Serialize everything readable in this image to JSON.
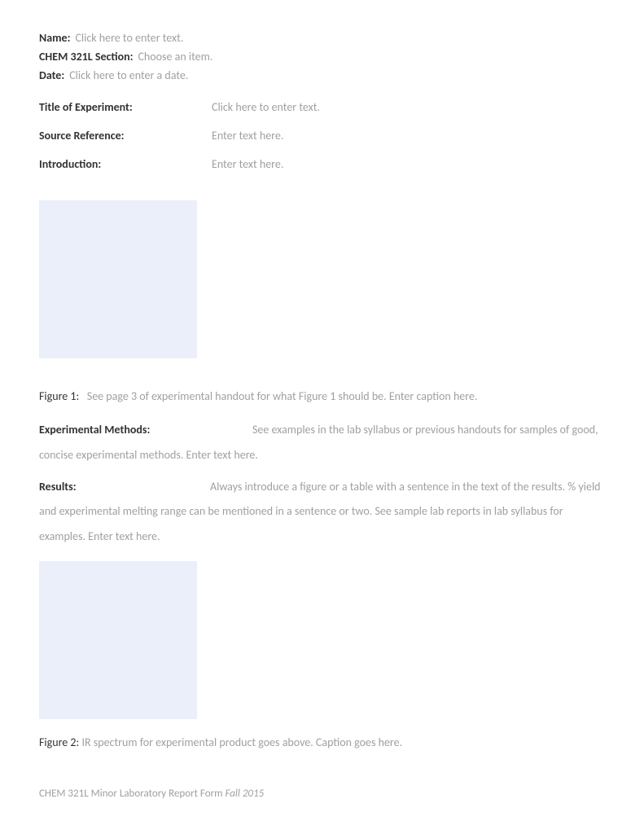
{
  "header": {
    "name_label": "Name:",
    "name_placeholder": "Click here to enter text.",
    "section_label": "CHEM 321L Section:",
    "section_placeholder": "Choose an item.",
    "date_label": "Date:",
    "date_placeholder": "Click here to enter a date."
  },
  "fields": {
    "title_label": "Title of Experiment:",
    "title_placeholder": "Click here to enter text.",
    "source_label": "Source Reference:",
    "source_placeholder": "Enter text here.",
    "intro_label": "Introduction:",
    "intro_placeholder": "Enter text here."
  },
  "figure1": {
    "label": "Figure 1:",
    "caption": "See page 3 of experimental handout for what Figure 1 should be. Enter caption here.",
    "box_color": "#ebeff9"
  },
  "methods": {
    "label": "Experimental Methods:",
    "text": "See examples in the lab syllabus or previous handouts for samples of good, concise experimental methods. Enter text here."
  },
  "results": {
    "label": "Results:",
    "text": "Always introduce a figure or a table with a sentence in the text of the results. % yield and experimental melting range can be mentioned in a sentence or two. See sample lab reports in lab syllabus for examples. Enter text here."
  },
  "figure2": {
    "label": "Figure 2:",
    "caption": "IR spectrum for experimental product goes above. Caption goes here.",
    "box_color": "#ebeff9"
  },
  "footer": {
    "text": "CHEM 321L Minor Laboratory Report Form ",
    "italic_text": "Fall 2015"
  },
  "colors": {
    "bold_text": "#333333",
    "placeholder_text": "#a0a0a0",
    "background": "#ffffff",
    "figure_box": "#ebeff9"
  },
  "typography": {
    "body_fontsize": 14,
    "footer_fontsize": 13,
    "font_family": "Calibri"
  }
}
